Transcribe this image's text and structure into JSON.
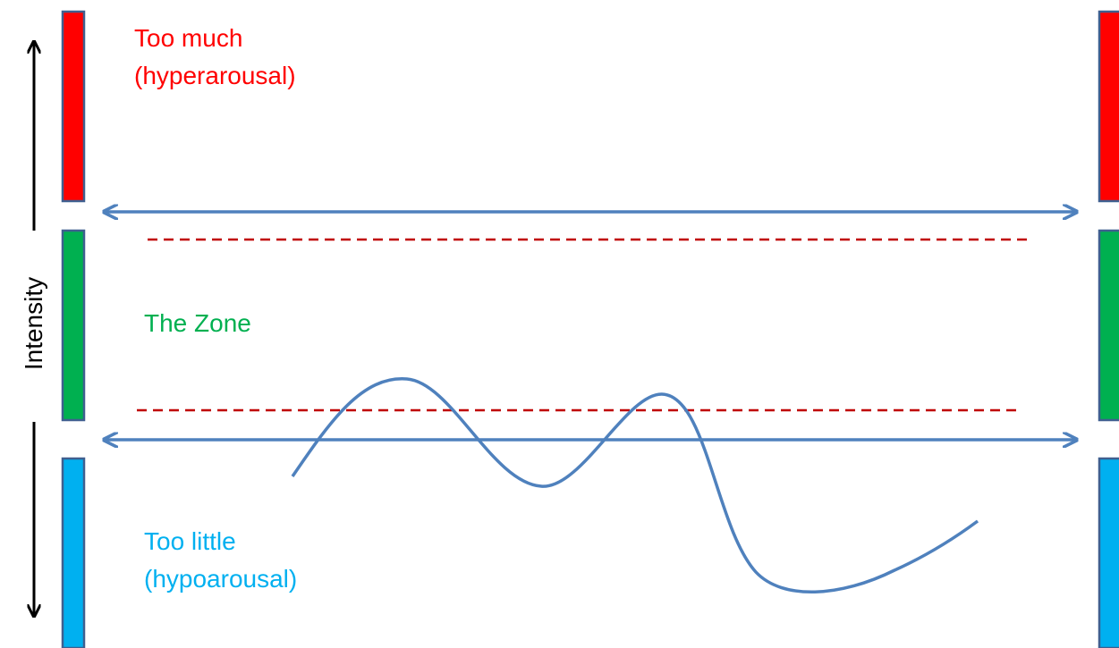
{
  "labels": {
    "too_much_line1": "Too much",
    "too_much_line2": "(hyperarousal)",
    "zone": "The Zone",
    "too_little_line1": "Too little",
    "too_little_line2": "(hypoarousal)",
    "axis": "Intensity"
  },
  "colors": {
    "hyper": "#ff0000",
    "zone": "#00b050",
    "hypo": "#00b0f0",
    "blue_line": "#4f81bd",
    "threshold": "#c00000",
    "bar_border": "#3f5f8f",
    "axis": "#000000"
  }
}
